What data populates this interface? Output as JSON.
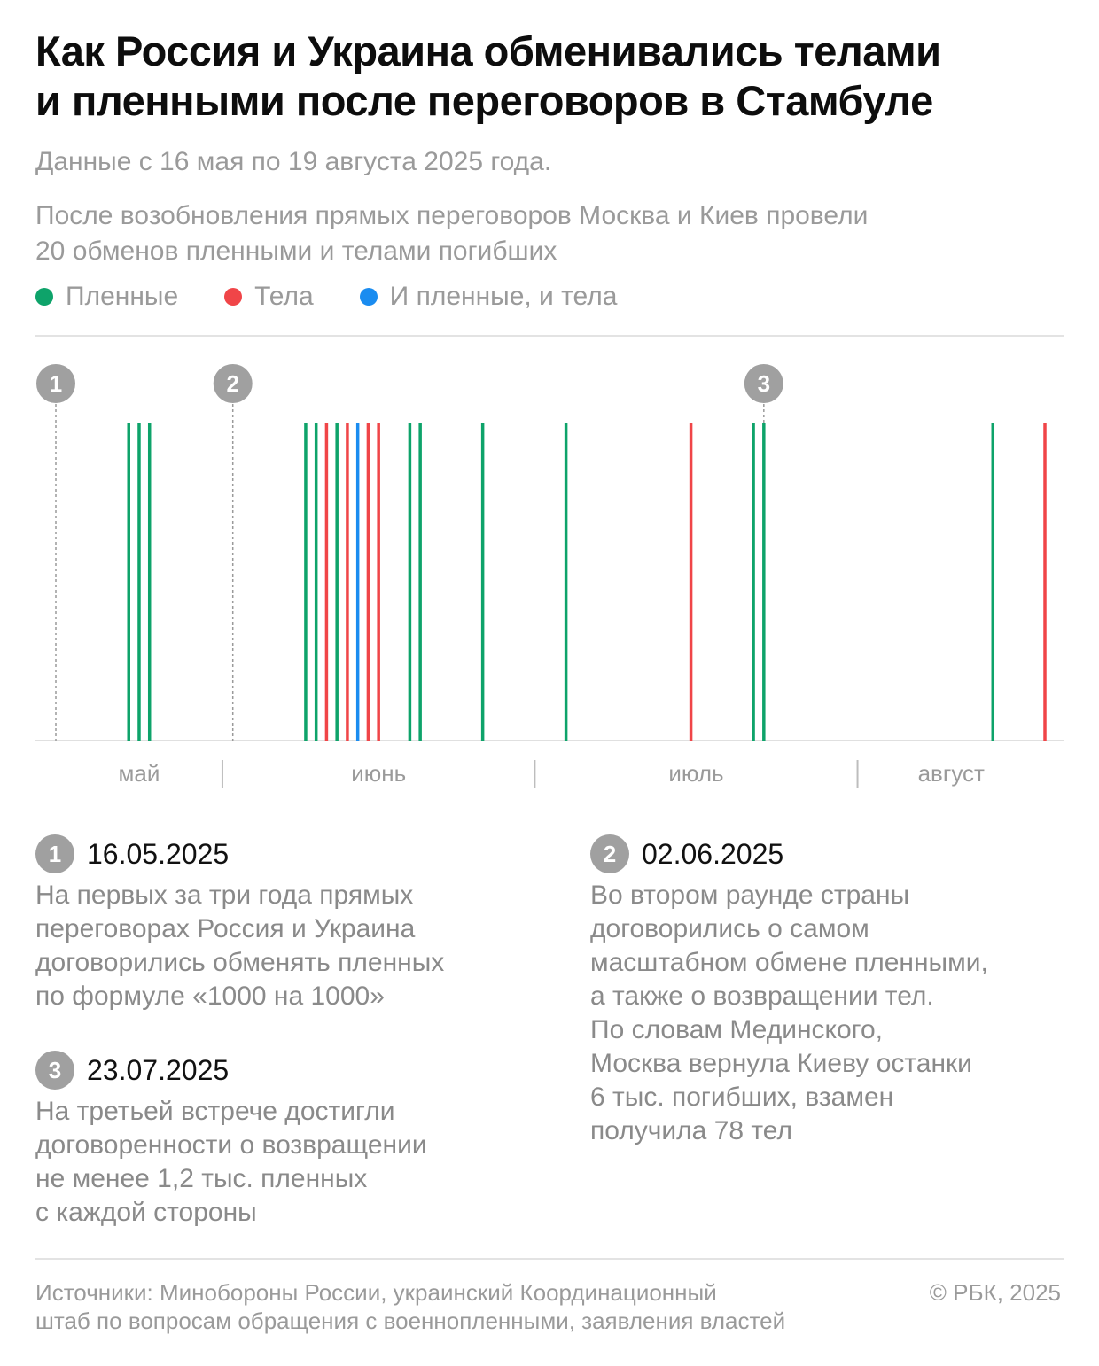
{
  "header": {
    "title_line1": "Как Россия и Украина обменивались телами",
    "title_line2": "и пленными после переговоров в Стамбуле",
    "subtitle": "Данные с 16 мая по 19 августа 2025 года.",
    "lead_line1": "После возобновления прямых переговоров Москва и Киев провели",
    "lead_line2": "20 обменов пленными и телами погибших"
  },
  "legend": [
    {
      "label": "Пленные",
      "color": "#0ea36a"
    },
    {
      "label": "Тела",
      "color": "#f04548"
    },
    {
      "label": "И пленные, и тела",
      "color": "#1a8cf0"
    }
  ],
  "chart_data": {
    "type": "timeline",
    "x_range": [
      "2025-05-16",
      "2025-08-19"
    ],
    "months": [
      "май",
      "июнь",
      "июль",
      "август"
    ],
    "markers": [
      {
        "label": "1",
        "date": "2025-05-16"
      },
      {
        "label": "2",
        "date": "2025-06-02"
      },
      {
        "label": "3",
        "date": "2025-07-23"
      }
    ],
    "events": [
      {
        "date": "2025-05-23",
        "type": "Пленные"
      },
      {
        "date": "2025-05-24",
        "type": "Пленные"
      },
      {
        "date": "2025-05-25",
        "type": "Пленные"
      },
      {
        "date": "2025-06-09",
        "type": "Пленные"
      },
      {
        "date": "2025-06-10",
        "type": "Пленные"
      },
      {
        "date": "2025-06-11",
        "type": "Тела"
      },
      {
        "date": "2025-06-12",
        "type": "Пленные"
      },
      {
        "date": "2025-06-13",
        "type": "Тела"
      },
      {
        "date": "2025-06-14",
        "type": "И пленные, и тела"
      },
      {
        "date": "2025-06-15",
        "type": "Тела"
      },
      {
        "date": "2025-06-16",
        "type": "Тела"
      },
      {
        "date": "2025-06-19",
        "type": "Пленные"
      },
      {
        "date": "2025-06-20",
        "type": "Пленные"
      },
      {
        "date": "2025-06-26",
        "type": "Пленные"
      },
      {
        "date": "2025-07-04",
        "type": "Пленные"
      },
      {
        "date": "2025-07-16",
        "type": "Тела"
      },
      {
        "date": "2025-07-22",
        "type": "Пленные"
      },
      {
        "date": "2025-07-23",
        "type": "Пленные"
      },
      {
        "date": "2025-08-14",
        "type": "Пленные"
      },
      {
        "date": "2025-08-19",
        "type": "Тела"
      }
    ]
  },
  "notes": [
    {
      "num": "1",
      "date": "16.05.2025",
      "text": "На первых за три года прямых\nпереговорах Россия и Украина\nдоговорились обменять пленных\nпо формуле «1000 на 1000»"
    },
    {
      "num": "3",
      "date": "23.07.2025",
      "text": "На третьей встрече достигли\nдоговоренности о возвращении\nне менее 1,2 тыс. пленных\nс каждой стороны"
    },
    {
      "num": "2",
      "date": "02.06.2025",
      "text": "Во втором раунде страны\nдоговорились о самом\nмасштабном обмене пленными,\nа также о возвращении тел.\nПо словам Мединского,\nМосква вернула Киеву останки\n6 тыс. погибших, взамен\nполучила 78 тел"
    }
  ],
  "footer": {
    "sources": "Источники: Минобороны России, украинский Координационный\nштаб по вопросам обращения с военнопленными, заявления властей",
    "copyright": "© РБК, 2025"
  }
}
